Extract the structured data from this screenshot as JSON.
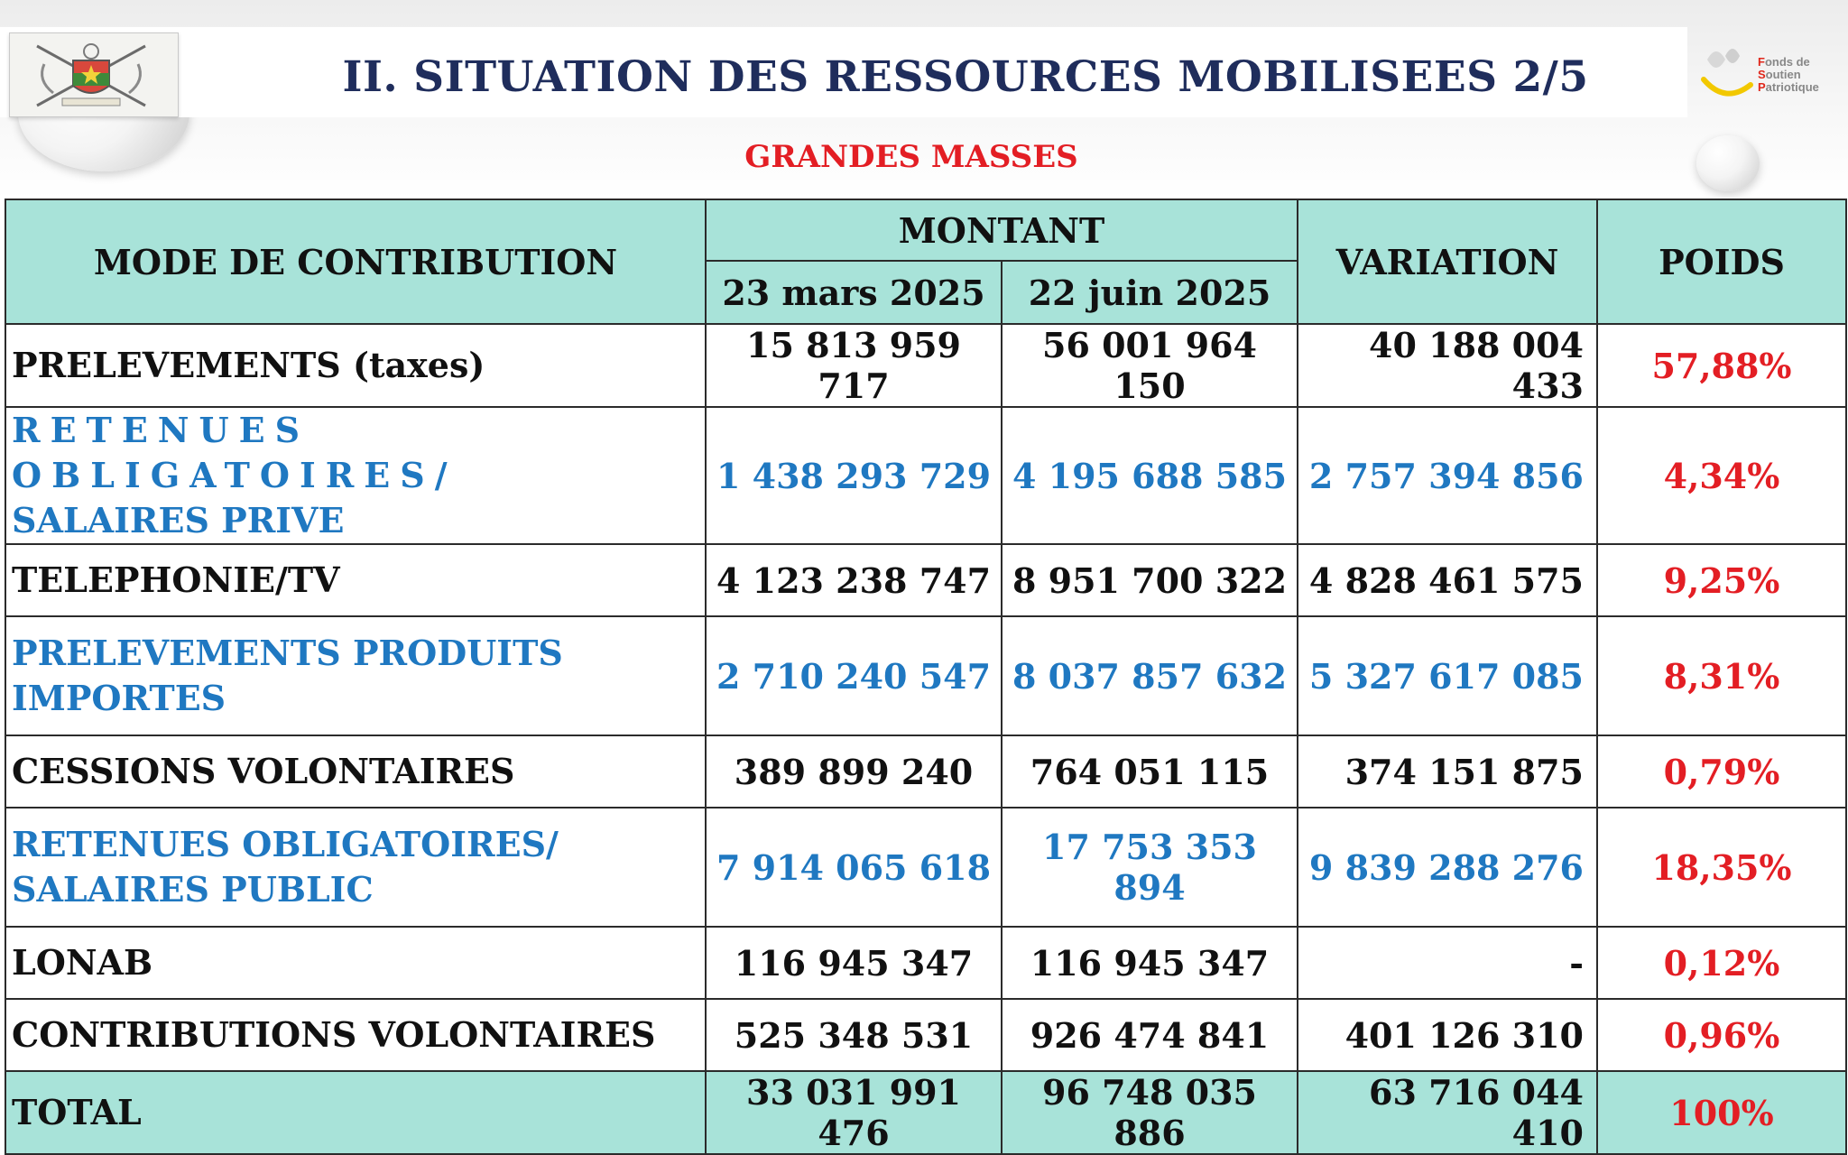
{
  "header": {
    "title": "II. SITUATION DES RESSOURCES MOBILISEES 2/5",
    "subtitle": "GRANDES MASSES",
    "logo_lines": [
      "Fonds de",
      "Soutien",
      "Patriotique"
    ]
  },
  "table": {
    "headers": {
      "mode": "MODE DE CONTRIBUTION",
      "montant": "MONTANT",
      "date1": "23 mars 2025",
      "date2": "22 juin 2025",
      "variation": "VARIATION",
      "poids": "POIDS"
    },
    "rows": [
      {
        "label": "PRELEVEMENTS",
        "label_suffix": " (taxes)",
        "m1": "15 813 959 717",
        "m2": "56 001 964 150",
        "variation": "40 188 004 433",
        "poids": "57,88%"
      },
      {
        "label_line1": "RETENUES OBLIGATOIRES/",
        "label_line2": "SALAIRES PRIVE",
        "m1": "1 438 293 729",
        "m2": "4 195 688 585",
        "variation": "2 757 394 856",
        "poids": "4,34%"
      },
      {
        "label": "TELEPHONIE/TV",
        "m1": "4 123 238 747",
        "m2": "8 951 700 322",
        "variation": "4 828 461 575",
        "poids": "9,25%"
      },
      {
        "label_line1": "PRELEVEMENTS PRODUITS",
        "label_line2": "IMPORTES",
        "m1": "2 710 240 547",
        "m2": "8 037 857 632",
        "variation": "5 327 617 085",
        "poids": "8,31%"
      },
      {
        "label": "CESSIONS VOLONTAIRES",
        "m1": "389 899 240",
        "m2": "764 051 115",
        "variation": "374 151 875",
        "poids": "0,79%"
      },
      {
        "label_line1": "RETENUES OBLIGATOIRES/",
        "label_line2": "SALAIRES PUBLIC",
        "m1": "7 914 065 618",
        "m2": "17 753 353 894",
        "variation": "9 839 288 276",
        "poids": "18,35%"
      },
      {
        "label": "LONAB",
        "m1": "116 945 347",
        "m2": "116 945 347",
        "variation": "-",
        "poids": "0,12%"
      },
      {
        "label": "CONTRIBUTIONS VOLONTAIRES",
        "m1": "525 348 531",
        "m2": "926 474 841",
        "variation": "401 126 310",
        "poids": "0,96%"
      }
    ],
    "total": {
      "label": "TOTAL",
      "m1": "33 031 991 476",
      "m2": "96 748 035 886",
      "variation": "63 716 044 410",
      "poids": "100%"
    }
  },
  "colors": {
    "title": "#1f2d5c",
    "accent_red": "#e31e24",
    "blue_rows": "#1f78c1",
    "header_fill": "#a8e3d9"
  }
}
